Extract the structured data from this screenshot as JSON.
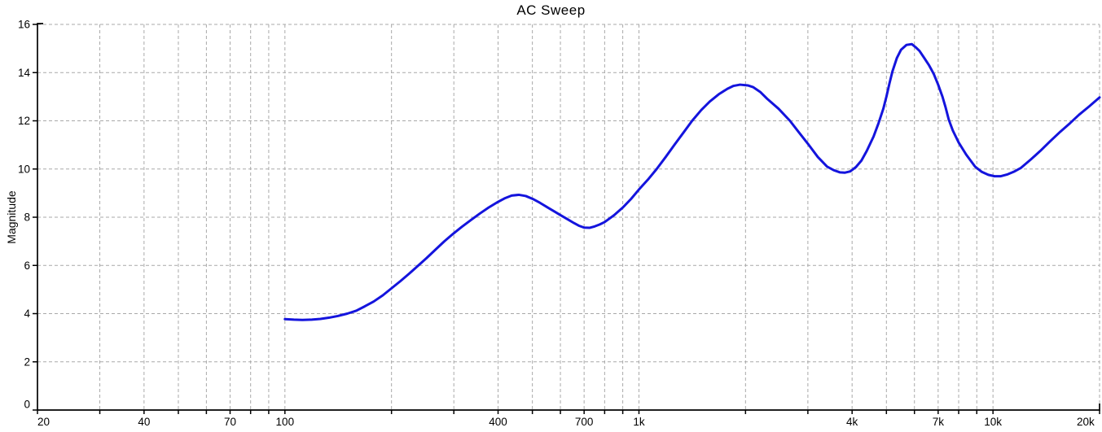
{
  "chart_data": {
    "type": "line",
    "title": "AC Sweep",
    "xlabel": "",
    "ylabel": "Magnitude",
    "x_scale": "log",
    "xlim": [
      20,
      20000
    ],
    "ylim": [
      0,
      16
    ],
    "grid": true,
    "legend": "none",
    "colors": {
      "background": "#ffffff",
      "grid": "#a9a9a9",
      "axis": "#000000",
      "text": "#000000",
      "curve": "#1414dd"
    },
    "y_ticks": [
      {
        "label": "16",
        "value": 16
      },
      {
        "label": "14",
        "value": 14
      },
      {
        "label": "12",
        "value": 12
      },
      {
        "label": "10",
        "value": 10
      },
      {
        "label": "8",
        "value": 8
      },
      {
        "label": "6",
        "value": 6
      },
      {
        "label": "4",
        "value": 4
      },
      {
        "label": "2",
        "value": 2
      },
      {
        "label": "0",
        "value": 0
      }
    ],
    "x_tick_labels": [
      {
        "label": "20",
        "value": 20
      },
      {
        "label": "40",
        "value": 40
      },
      {
        "label": "70",
        "value": 70
      },
      {
        "label": "100",
        "value": 100
      },
      {
        "label": "400",
        "value": 400
      },
      {
        "label": "700",
        "value": 700
      },
      {
        "label": "1k",
        "value": 1000
      },
      {
        "label": "4k",
        "value": 4000
      },
      {
        "label": "7k",
        "value": 7000
      },
      {
        "label": "10k",
        "value": 10000
      },
      {
        "label": "20k",
        "value": 20000
      }
    ],
    "x_gridline_values": [
      30,
      40,
      50,
      60,
      70,
      80,
      90,
      100,
      200,
      300,
      400,
      500,
      600,
      700,
      800,
      900,
      1000,
      2000,
      3000,
      4000,
      5000,
      6000,
      7000,
      8000,
      9000,
      10000,
      20000
    ],
    "x_tick_mark_values": [
      20,
      30,
      40,
      50,
      60,
      70,
      80,
      90,
      100,
      200,
      300,
      400,
      500,
      600,
      700,
      800,
      900,
      1000,
      2000,
      3000,
      4000,
      5000,
      6000,
      7000,
      8000,
      9000,
      10000,
      20000
    ],
    "series": [
      {
        "name": "Magnitude",
        "color": "#1414dd",
        "points": [
          [
            100,
            3.77
          ],
          [
            106,
            3.75
          ],
          [
            112,
            3.74
          ],
          [
            119,
            3.75
          ],
          [
            126,
            3.78
          ],
          [
            133,
            3.83
          ],
          [
            141,
            3.9
          ],
          [
            150,
            4.0
          ],
          [
            159,
            4.12
          ],
          [
            168,
            4.3
          ],
          [
            178,
            4.5
          ],
          [
            189,
            4.76
          ],
          [
            200,
            5.05
          ],
          [
            212,
            5.35
          ],
          [
            224,
            5.65
          ],
          [
            237,
            5.97
          ],
          [
            251,
            6.3
          ],
          [
            266,
            6.65
          ],
          [
            282,
            7.0
          ],
          [
            299,
            7.32
          ],
          [
            316,
            7.6
          ],
          [
            335,
            7.88
          ],
          [
            355,
            8.15
          ],
          [
            376,
            8.4
          ],
          [
            398,
            8.62
          ],
          [
            417,
            8.78
          ],
          [
            437,
            8.9
          ],
          [
            458,
            8.93
          ],
          [
            479,
            8.88
          ],
          [
            501,
            8.76
          ],
          [
            525,
            8.6
          ],
          [
            550,
            8.42
          ],
          [
            575,
            8.25
          ],
          [
            603,
            8.07
          ],
          [
            631,
            7.9
          ],
          [
            655,
            7.76
          ],
          [
            676,
            7.65
          ],
          [
            700,
            7.57
          ],
          [
            725,
            7.56
          ],
          [
            750,
            7.62
          ],
          [
            775,
            7.7
          ],
          [
            800,
            7.8
          ],
          [
            850,
            8.08
          ],
          [
            900,
            8.4
          ],
          [
            950,
            8.76
          ],
          [
            1000,
            9.15
          ],
          [
            1060,
            9.56
          ],
          [
            1122,
            10.0
          ],
          [
            1190,
            10.5
          ],
          [
            1259,
            11.0
          ],
          [
            1334,
            11.5
          ],
          [
            1413,
            12.0
          ],
          [
            1500,
            12.45
          ],
          [
            1585,
            12.8
          ],
          [
            1680,
            13.1
          ],
          [
            1778,
            13.33
          ],
          [
            1850,
            13.45
          ],
          [
            1930,
            13.5
          ],
          [
            2030,
            13.47
          ],
          [
            2100,
            13.4
          ],
          [
            2200,
            13.2
          ],
          [
            2300,
            12.92
          ],
          [
            2480,
            12.5
          ],
          [
            2670,
            12.0
          ],
          [
            2820,
            11.55
          ],
          [
            3000,
            11.05
          ],
          [
            3200,
            10.5
          ],
          [
            3400,
            10.1
          ],
          [
            3550,
            9.95
          ],
          [
            3700,
            9.86
          ],
          [
            3820,
            9.85
          ],
          [
            3950,
            9.9
          ],
          [
            4100,
            10.08
          ],
          [
            4250,
            10.35
          ],
          [
            4400,
            10.75
          ],
          [
            4600,
            11.35
          ],
          [
            4750,
            11.9
          ],
          [
            4900,
            12.5
          ],
          [
            5000,
            13.0
          ],
          [
            5100,
            13.55
          ],
          [
            5200,
            14.05
          ],
          [
            5350,
            14.6
          ],
          [
            5500,
            14.95
          ],
          [
            5700,
            15.15
          ],
          [
            5900,
            15.18
          ],
          [
            6050,
            15.05
          ],
          [
            6200,
            14.9
          ],
          [
            6400,
            14.6
          ],
          [
            6600,
            14.3
          ],
          [
            6800,
            13.95
          ],
          [
            7000,
            13.5
          ],
          [
            7200,
            13.0
          ],
          [
            7350,
            12.55
          ],
          [
            7500,
            12.05
          ],
          [
            7700,
            11.6
          ],
          [
            8000,
            11.1
          ],
          [
            8400,
            10.6
          ],
          [
            8900,
            10.1
          ],
          [
            9300,
            9.88
          ],
          [
            9700,
            9.76
          ],
          [
            10100,
            9.7
          ],
          [
            10500,
            9.7
          ],
          [
            11000,
            9.78
          ],
          [
            11500,
            9.9
          ],
          [
            12000,
            10.05
          ],
          [
            12800,
            10.4
          ],
          [
            13600,
            10.75
          ],
          [
            14500,
            11.15
          ],
          [
            15500,
            11.55
          ],
          [
            16500,
            11.9
          ],
          [
            17500,
            12.25
          ],
          [
            18700,
            12.6
          ],
          [
            20000,
            12.97
          ]
        ]
      }
    ]
  }
}
